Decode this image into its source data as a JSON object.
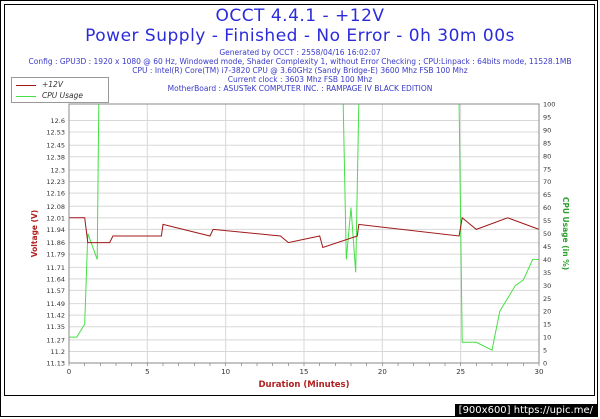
{
  "header": {
    "title_line1": "OCCT 4.4.1 - +12V",
    "title_line2": "Power Supply - Finished - No Error - 0h 30m 00s",
    "generated": "Generated by OCCT : 2558/04/16 16:02:07",
    "config": "Config : GPU3D : 1920 x 1080 @ 60 Hz, Windowed mode, Shader Complexity 1, without Error Checking ; CPU:Linpack : 64bits mode, 11528.1MB",
    "cpu": "CPU : Intel(R) Core(TM) i7-3820 CPU @ 3.60GHz (Sandy Bridge-E) 3600 Mhz FSB 100 Mhz",
    "clock": "Current clock : 3603 Mhz FSB 100 Mhz",
    "motherboard": "MotherBoard : ASUSTeK COMPUTER INC. : RAMPAGE IV BLACK EDITION"
  },
  "watermark": "[900x600] https://upic.me/",
  "colors": {
    "voltage": "#a01818",
    "cpu": "#44e044",
    "title": "#2b2bdc",
    "info": "#3a3ac8",
    "axis_label_left": "#b02020",
    "axis_label_right": "#2ca02c",
    "grid": "#d8d8d8"
  },
  "chart_data": {
    "type": "line",
    "xlabel": "Duration (Minutes)",
    "ylabel": "Voltage (V)",
    "y2label": "CPU Usage (in %)",
    "xlim": [
      0,
      30
    ],
    "ylim": [
      11.13,
      12.7
    ],
    "y2lim": [
      0,
      100
    ],
    "x_ticks": [
      "0",
      "5",
      "10",
      "15",
      "20",
      "25",
      "30"
    ],
    "y_ticks": [
      "11.13",
      "11.2",
      "11.27",
      "11.35",
      "11.42",
      "11.49",
      "11.57",
      "11.64",
      "11.71",
      "11.79",
      "11.86",
      "11.94",
      "12.01",
      "12.08",
      "12.16",
      "12.23",
      "12.3",
      "12.38",
      "12.45",
      "12.53",
      "12.6"
    ],
    "y2_ticks": [
      "0",
      "5",
      "10",
      "15",
      "20",
      "25",
      "30",
      "35",
      "40",
      "45",
      "50",
      "55",
      "60",
      "65",
      "70",
      "75",
      "80",
      "85",
      "90",
      "95",
      "100"
    ],
    "grid": true,
    "legend_position": "top-left",
    "series": [
      {
        "name": "+12V",
        "axis": "left",
        "x": [
          0,
          1.0,
          1.2,
          2.6,
          2.8,
          5.9,
          6.0,
          9.0,
          9.2,
          13.5,
          14.0,
          16.0,
          16.2,
          18.4,
          18.5,
          24.9,
          25.1,
          26.0,
          28.0,
          30.0
        ],
        "y": [
          12.01,
          12.01,
          11.86,
          11.86,
          11.9,
          11.9,
          11.97,
          11.9,
          11.94,
          11.9,
          11.86,
          11.9,
          11.83,
          11.9,
          11.97,
          11.9,
          12.01,
          11.94,
          12.01,
          11.94
        ]
      },
      {
        "name": "CPU Usage",
        "axis": "right",
        "x": [
          0,
          0.5,
          1.0,
          1.2,
          1.5,
          1.8,
          1.9,
          2.2,
          10.0,
          17.5,
          17.7,
          18.0,
          18.3,
          18.5,
          24.9,
          25.1,
          26.0,
          27.0,
          27.5,
          28.0,
          28.5,
          29.0,
          29.6,
          30.0
        ],
        "y": [
          10,
          10,
          15,
          50,
          45,
          40,
          100,
          100,
          100,
          100,
          40,
          60,
          35,
          100,
          100,
          8,
          8,
          5,
          20,
          25,
          30,
          32,
          40,
          40
        ]
      }
    ]
  }
}
